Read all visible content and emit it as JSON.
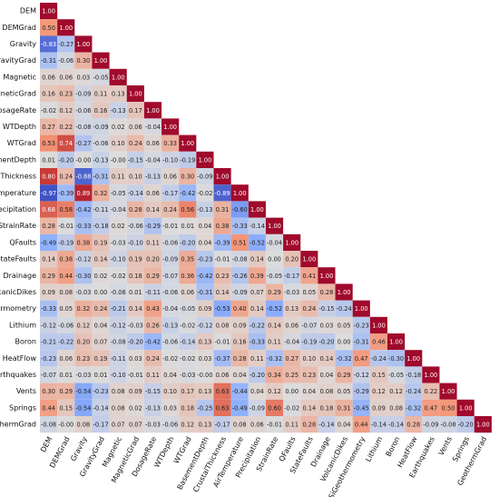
{
  "chart_data": {
    "type": "heatmap",
    "categories": [
      "DEM",
      "DEMGrad",
      "Gravity",
      "GravityGrad",
      "Magnetic",
      "MagneticGrad",
      "DosageRate",
      "WTDepth",
      "WTGrad",
      "BasementDepth",
      "CrustalThickness",
      "AirTemperature",
      "Precipitation",
      "StrainRate",
      "QFaults",
      "StateFaults",
      "Drainage",
      "VolcanicDikes",
      "SiGeothermometry",
      "Lithium",
      "Boron",
      "HeatFlow",
      "Earthquakes",
      "Vents",
      "Springs",
      "GeothermGrad"
    ],
    "colorscale": [
      [
        -1,
        "#3b4cc0"
      ],
      [
        -0.5,
        "#8db0fe"
      ],
      [
        0,
        "#dddcdc"
      ],
      [
        0.5,
        "#f4987a"
      ],
      [
        0.8,
        "#c83b37"
      ],
      [
        1,
        "#a00a2c"
      ]
    ],
    "values": [
      [
        1.0
      ],
      [
        0.5,
        1.0
      ],
      [
        -0.83,
        -0.27,
        1.0
      ],
      [
        -0.31,
        -0.06,
        0.3,
        1.0
      ],
      [
        0.06,
        0.06,
        0.03,
        -0.05,
        1.0
      ],
      [
        0.16,
        0.23,
        -0.09,
        0.11,
        0.13,
        1.0
      ],
      [
        -0.02,
        0.12,
        -0.06,
        0.16,
        -0.13,
        0.17,
        1.0
      ],
      [
        0.27,
        0.22,
        -0.08,
        -0.09,
        0.02,
        0.06,
        -0.04,
        1.0
      ],
      [
        0.53,
        0.74,
        -0.27,
        -0.06,
        0.1,
        0.24,
        0.06,
        0.33,
        1.0
      ],
      [
        0.01,
        -0.2,
        -0.0,
        -0.13,
        -0.0,
        -0.15,
        -0.04,
        -0.1,
        -0.19,
        1.0
      ],
      [
        0.8,
        0.24,
        -0.88,
        -0.31,
        0.11,
        0.1,
        -0.13,
        0.06,
        0.3,
        -0.09,
        1.0
      ],
      [
        -0.97,
        -0.39,
        0.89,
        0.32,
        -0.05,
        -0.14,
        0.06,
        -0.17,
        -0.42,
        -0.02,
        -0.89,
        1.0
      ],
      [
        0.68,
        0.58,
        -0.42,
        -0.11,
        -0.04,
        0.28,
        0.14,
        0.24,
        0.56,
        -0.13,
        0.31,
        -0.6,
        1.0
      ],
      [
        0.28,
        -0.01,
        -0.33,
        -0.18,
        0.02,
        -0.06,
        -0.29,
        -0.01,
        0.01,
        0.04,
        0.38,
        -0.33,
        -0.14,
        1.0
      ],
      [
        -0.49,
        -0.19,
        0.38,
        0.19,
        -0.03,
        -0.1,
        0.11,
        -0.06,
        -0.2,
        0.04,
        -0.39,
        0.51,
        -0.52,
        -0.04,
        1.0
      ],
      [
        0.14,
        0.38,
        -0.12,
        0.14,
        -0.1,
        0.19,
        0.2,
        -0.09,
        0.35,
        -0.23,
        -0.01,
        -0.08,
        0.14,
        0.0,
        0.2,
        1.0
      ],
      [
        0.29,
        0.44,
        -0.3,
        0.02,
        -0.02,
        0.18,
        0.29,
        -0.07,
        0.36,
        -0.42,
        0.23,
        -0.26,
        0.39,
        -0.05,
        -0.17,
        0.41,
        1.0
      ],
      [
        0.09,
        0.08,
        -0.03,
        0.0,
        -0.06,
        0.01,
        -0.11,
        -0.06,
        0.06,
        -0.31,
        0.14,
        -0.09,
        0.07,
        0.29,
        -0.03,
        0.05,
        0.28,
        1.0
      ],
      [
        -0.33,
        0.05,
        0.32,
        0.24,
        -0.21,
        0.14,
        0.43,
        -0.04,
        -0.05,
        0.09,
        -0.53,
        0.4,
        0.14,
        -0.52,
        0.13,
        0.24,
        -0.15,
        -0.24,
        1.0
      ],
      [
        -0.12,
        -0.06,
        0.12,
        0.04,
        -0.12,
        -0.03,
        0.26,
        -0.13,
        -0.02,
        -0.12,
        0.08,
        0.09,
        -0.22,
        0.14,
        0.06,
        -0.07,
        0.03,
        0.05,
        -0.23,
        1.0
      ],
      [
        -0.21,
        -0.22,
        0.2,
        0.07,
        -0.08,
        -0.2,
        -0.42,
        -0.06,
        -0.14,
        0.13,
        -0.01,
        0.16,
        -0.33,
        0.11,
        -0.04,
        -0.19,
        -0.2,
        0.0,
        -0.31,
        0.46,
        1.0
      ],
      [
        -0.23,
        0.06,
        0.23,
        0.19,
        -0.11,
        0.03,
        0.24,
        -0.02,
        -0.02,
        0.03,
        -0.37,
        0.28,
        0.11,
        -0.32,
        0.27,
        0.1,
        0.14,
        -0.32,
        0.47,
        -0.24,
        -0.3,
        1.0
      ],
      [
        -0.07,
        0.01,
        -0.03,
        0.01,
        -0.1,
        -0.01,
        0.11,
        0.04,
        -0.03,
        -0.0,
        0.06,
        0.04,
        -0.2,
        0.34,
        0.25,
        0.23,
        0.04,
        0.29,
        -0.12,
        0.15,
        -0.05,
        -0.18,
        1.0
      ],
      [
        0.3,
        0.29,
        -0.54,
        -0.23,
        0.08,
        0.09,
        -0.15,
        0.1,
        0.17,
        0.13,
        0.63,
        -0.44,
        0.04,
        0.12,
        0.0,
        0.04,
        0.08,
        0.05,
        -0.29,
        0.12,
        0.12,
        -0.24,
        0.22,
        1.0
      ],
      [
        0.44,
        0.15,
        -0.54,
        -0.14,
        0.08,
        0.02,
        -0.13,
        0.03,
        0.18,
        -0.25,
        0.63,
        -0.49,
        -0.09,
        0.6,
        -0.02,
        0.14,
        0.18,
        0.31,
        -0.45,
        0.09,
        0.08,
        -0.32,
        0.47,
        0.5,
        1.0
      ],
      [
        -0.08,
        -0.0,
        0.08,
        -0.17,
        0.07,
        0.07,
        -0.03,
        -0.06,
        0.12,
        0.13,
        -0.17,
        0.08,
        0.06,
        -0.01,
        0.11,
        0.28,
        -0.14,
        0.04,
        0.44,
        -0.14,
        -0.14,
        0.28,
        -0.09,
        -0.08,
        -0.2,
        1.0
      ]
    ],
    "value_labels": [
      [
        "1.00"
      ],
      [
        "0.50",
        "1.00"
      ],
      [
        "-0.83",
        "-0.27",
        "1.00"
      ],
      [
        "-0.31",
        "-0.06",
        "0.30",
        "1.00"
      ],
      [
        "0.06",
        "0.06",
        "0.03",
        "-0.05",
        "1.00"
      ],
      [
        "0.16",
        "0.23",
        "-0.09",
        "0.11",
        "0.13",
        "1.00"
      ],
      [
        "-0.02",
        "0.12",
        "-0.06",
        "0.16",
        "-0.13",
        "0.17",
        "1.00"
      ],
      [
        "0.27",
        "0.22",
        "-0.08",
        "-0.09",
        "0.02",
        "0.06",
        "-0.04",
        "1.00"
      ],
      [
        "0.53",
        "0.74",
        "-0.27",
        "-0.06",
        "0.10",
        "0.24",
        "0.06",
        "0.33",
        "1.00"
      ],
      [
        "0.01",
        "-0.20",
        "-0.00",
        "-0.13",
        "-0.00",
        "-0.15",
        "-0.04",
        "-0.10",
        "-0.19",
        "1.00"
      ],
      [
        "0.80",
        "0.24",
        "-0.88",
        "-0.31",
        "0.11",
        "0.10",
        "-0.13",
        "0.06",
        "0.30",
        "-0.09",
        "1.00"
      ],
      [
        "-0.97",
        "-0.39",
        "0.89",
        "0.32",
        "-0.05",
        "-0.14",
        "0.06",
        "-0.17",
        "-0.42",
        "-0.02",
        "-0.89",
        "1.00"
      ],
      [
        "0.68",
        "0.58",
        "-0.42",
        "-0.11",
        "-0.04",
        "0.28",
        "0.14",
        "0.24",
        "0.56",
        "-0.13",
        "0.31",
        "-0.60",
        "1.00"
      ],
      [
        "0.28",
        "-0.01",
        "-0.33",
        "-0.18",
        "0.02",
        "-0.06",
        "-0.29",
        "-0.01",
        "0.01",
        "0.04",
        "0.38",
        "-0.33",
        "-0.14",
        "1.00"
      ],
      [
        "-0.49",
        "-0.19",
        "0.38",
        "0.19",
        "-0.03",
        "-0.10",
        "0.11",
        "-0.06",
        "-0.20",
        "0.04",
        "-0.39",
        "0.51",
        "-0.52",
        "-0.04",
        "1.00"
      ],
      [
        "0.14",
        "0.38",
        "-0.12",
        "0.14",
        "-0.10",
        "0.19",
        "0.20",
        "-0.09",
        "0.35",
        "-0.23",
        "-0.01",
        "-0.08",
        "0.14",
        "0.00",
        "0.20",
        "1.00"
      ],
      [
        "0.29",
        "0.44",
        "-0.30",
        "0.02",
        "-0.02",
        "0.18",
        "0.29",
        "-0.07",
        "0.36",
        "-0.42",
        "0.23",
        "-0.26",
        "0.39",
        "-0.05",
        "-0.17",
        "0.41",
        "1.00"
      ],
      [
        "0.09",
        "0.08",
        "-0.03",
        "0.00",
        "-0.06",
        "0.01",
        "-0.11",
        "-0.06",
        "0.06",
        "-0.31",
        "0.14",
        "-0.09",
        "0.07",
        "0.29",
        "-0.03",
        "0.05",
        "0.28",
        "1.00"
      ],
      [
        "-0.33",
        "0.05",
        "0.32",
        "0.24",
        "-0.21",
        "0.14",
        "0.43",
        "-0.04",
        "-0.05",
        "0.09",
        "-0.53",
        "0.40",
        "0.14",
        "-0.52",
        "0.13",
        "0.24",
        "-0.15",
        "-0.24",
        "1.00"
      ],
      [
        "-0.12",
        "-0.06",
        "0.12",
        "0.04",
        "-0.12",
        "-0.03",
        "0.26",
        "-0.13",
        "-0.02",
        "-0.12",
        "0.08",
        "0.09",
        "-0.22",
        "0.14",
        "0.06",
        "-0.07",
        "0.03",
        "0.05",
        "-0.23",
        "1.00"
      ],
      [
        "-0.21",
        "-0.22",
        "0.20",
        "0.07",
        "-0.08",
        "-0.20",
        "-0.42",
        "-0.06",
        "-0.14",
        "0.13",
        "-0.01",
        "0.16",
        "-0.33",
        "0.11",
        "-0.04",
        "-0.19",
        "-0.20",
        "0.00",
        "-0.31",
        "0.46",
        "1.00"
      ],
      [
        "-0.23",
        "0.06",
        "0.23",
        "0.19",
        "-0.11",
        "0.03",
        "0.24",
        "-0.02",
        "-0.02",
        "0.03",
        "-0.37",
        "0.28",
        "0.11",
        "-0.32",
        "0.27",
        "0.10",
        "0.14",
        "-0.32",
        "0.47",
        "-0.24",
        "-0.30",
        "1.00"
      ],
      [
        "-0.07",
        "0.01",
        "-0.03",
        "0.01",
        "-0.10",
        "-0.01",
        "0.11",
        "0.04",
        "-0.03",
        "-0.00",
        "0.06",
        "0.04",
        "-0.20",
        "0.34",
        "0.25",
        "0.23",
        "0.04",
        "0.29",
        "-0.12",
        "0.15",
        "-0.05",
        "-0.18",
        "1.00"
      ],
      [
        "0.30",
        "0.29",
        "-0.54",
        "-0.23",
        "0.08",
        "0.09",
        "-0.15",
        "0.10",
        "0.17",
        "0.13",
        "0.63",
        "-0.44",
        "0.04",
        "0.12",
        "0.00",
        "0.04",
        "0.08",
        "0.05",
        "-0.29",
        "0.12",
        "0.12",
        "-0.24",
        "0.22",
        "1.00"
      ],
      [
        "0.44",
        "0.15",
        "-0.54",
        "-0.14",
        "0.08",
        "0.02",
        "-0.13",
        "0.03",
        "0.18",
        "-0.25",
        "0.63",
        "-0.49",
        "-0.09",
        "0.60",
        "-0.02",
        "0.14",
        "0.18",
        "0.31",
        "-0.45",
        "0.09",
        "0.08",
        "-0.32",
        "0.47",
        "0.50",
        "1.00"
      ],
      [
        "-0.08",
        "-0.00",
        "0.08",
        "-0.17",
        "0.07",
        "0.07",
        "-0.03",
        "-0.06",
        "0.12",
        "0.13",
        "-0.17",
        "0.08",
        "0.06",
        "-0.01",
        "0.11",
        "0.28",
        "-0.14",
        "0.04",
        "0.44",
        "-0.14",
        "-0.14",
        "0.28",
        "-0.09",
        "-0.08",
        "-0.20",
        "1.00"
      ]
    ]
  }
}
